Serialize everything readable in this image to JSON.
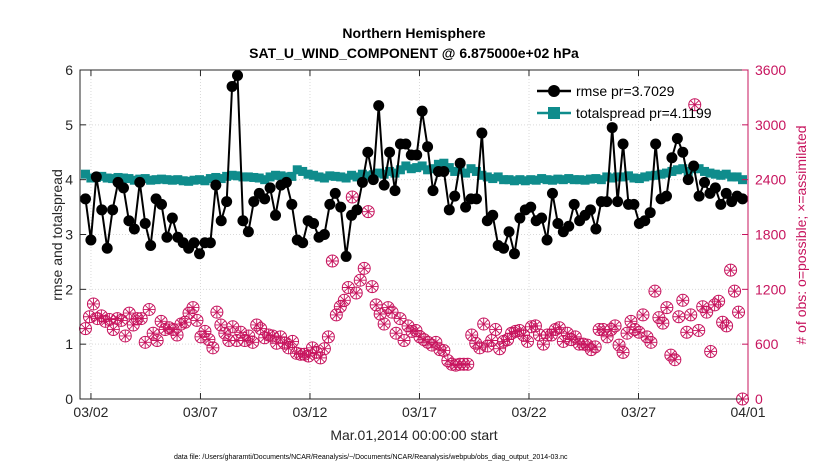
{
  "chart_data": {
    "type": "line",
    "title": "Northern Hemisphere",
    "subtitle": "SAT_U_WIND_COMPONENT @ 6.875000e+02 hPa",
    "xlabel": "Mar.01,2014 00:00:00 start",
    "ylabel": "rmse and totalspread",
    "y2label": "# of obs: o=possible; ×=assimilated",
    "footnote": "data file: /Users/gharamti/Documents/NCAR/Reanalysis/~/Documents/NCAR/Reanalysis/webpub/obs_diag_output_2014-03.nc",
    "xlim": [
      0.5,
      31.0
    ],
    "ylim": [
      0,
      6
    ],
    "y2lim": [
      0,
      3600
    ],
    "x_ticks": [
      1,
      6,
      11,
      16,
      21,
      26,
      31
    ],
    "x_tick_labels": [
      "03/02",
      "03/07",
      "03/12",
      "03/17",
      "03/22",
      "03/27",
      "04/01"
    ],
    "y_ticks": [
      0,
      1,
      2,
      3,
      4,
      5,
      6
    ],
    "y2_ticks": [
      0,
      600,
      1200,
      1800,
      2400,
      3000,
      3600
    ],
    "grid": true,
    "legend_position": "top-right",
    "colors": {
      "rmse": "#000000",
      "totalspread": "#0f8c8c",
      "obs": "#c7145e"
    },
    "series": [
      {
        "name": "rmse pr=3.7029",
        "axis": "left",
        "values": [
          3.65,
          2.9,
          4.05,
          3.45,
          2.75,
          3.45,
          3.95,
          3.85,
          3.25,
          3.1,
          3.95,
          3.2,
          2.8,
          3.65,
          3.55,
          2.95,
          3.3,
          2.95,
          2.85,
          2.75,
          2.85,
          2.65,
          2.85,
          2.85,
          3.9,
          3.25,
          3.6,
          5.7,
          5.9,
          3.25,
          3.05,
          3.6,
          3.75,
          3.65,
          3.85,
          3.35,
          3.9,
          3.95,
          3.55,
          2.9,
          2.85,
          3.25,
          3.2,
          2.95,
          3.0,
          3.55,
          3.75,
          3.5,
          2.6,
          3.35,
          3.45,
          3.95,
          4.5,
          4.0,
          5.35,
          3.9,
          4.5,
          3.8,
          4.65,
          4.65,
          4.45,
          4.45,
          5.25,
          4.6,
          3.8,
          4.15,
          4.15,
          3.45,
          3.7,
          4.3,
          3.5,
          3.65,
          3.65,
          4.85,
          3.25,
          3.35,
          2.8,
          2.75,
          3.05,
          2.65,
          3.3,
          3.45,
          3.5,
          3.25,
          3.3,
          2.9,
          3.75,
          3.2,
          3.05,
          3.15,
          3.55,
          3.25,
          3.35,
          3.45,
          3.1,
          3.6,
          3.6,
          4.95,
          3.6,
          4.65,
          3.55,
          3.55,
          3.2,
          3.25,
          3.4,
          4.65,
          3.65,
          3.7,
          4.4,
          4.75,
          4.5,
          4.0,
          4.25,
          3.7,
          3.95,
          3.75,
          3.85,
          3.55,
          3.75,
          3.6,
          3.7,
          3.65
        ]
      },
      {
        "name": "totalspread pr=4.1199",
        "axis": "left",
        "values": [
          4.1,
          4.03,
          4.04,
          4.06,
          4.03,
          4.02,
          4.04,
          4.03,
          4.02,
          3.99,
          4.01,
          4.02,
          3.99,
          4.0,
          4.01,
          4.0,
          3.99,
          4.0,
          3.98,
          3.97,
          3.99,
          4.0,
          3.98,
          4.02,
          4.04,
          4.02,
          4.06,
          4.08,
          4.07,
          4.05,
          4.05,
          4.04,
          4.03,
          4.0,
          4.05,
          4.08,
          4.07,
          4.05,
          4.06,
          4.18,
          4.15,
          4.1,
          4.08,
          4.05,
          4.03,
          4.07,
          4.06,
          4.05,
          4.03,
          4.08,
          4.05,
          4.1,
          4.07,
          4.09,
          4.12,
          4.1,
          4.15,
          4.12,
          4.18,
          4.25,
          4.2,
          4.22,
          4.25,
          4.18,
          4.2,
          4.28,
          4.3,
          4.22,
          4.15,
          4.18,
          4.12,
          4.2,
          4.15,
          4.08,
          4.05,
          4.02,
          4.05,
          4.0,
          4.0,
          3.98,
          4.0,
          3.98,
          4.0,
          3.99,
          4.02,
          4.0,
          3.99,
          4.01,
          4.0,
          4.02,
          4.0,
          4.0,
          3.99,
          4.01,
          4.02,
          4.0,
          4.05,
          4.03,
          4.05,
          4.05,
          4.07,
          4.03,
          4.02,
          4.05,
          4.07,
          4.08,
          4.1,
          4.12,
          4.15,
          4.18,
          4.2,
          4.15,
          4.2,
          4.2,
          4.15,
          4.12,
          4.1,
          4.08,
          4.1,
          4.05,
          4.05,
          4.0
        ]
      },
      {
        "name": "# obs possible",
        "axis": "right",
        "marker": "o",
        "values": [
          770,
          900,
          1040,
          880,
          910,
          850,
          870,
          760,
          880,
          860,
          690,
          940,
          810,
          880,
          880,
          620,
          980,
          720,
          640,
          850,
          760,
          780,
          760,
          700,
          820,
          840,
          940,
          1000,
          860,
          680,
          740,
          650,
          560,
          950,
          810,
          720,
          640,
          790,
          640,
          730,
          640,
          690,
          620,
          810,
          770,
          670,
          700,
          690,
          610,
          680,
          610,
          560,
          630,
          500,
          490,
          490,
          470,
          560,
          510,
          450,
          550,
          680,
          1510,
          920,
          1010,
          1080,
          1220,
          2210,
          1160,
          1300,
          1430,
          2050,
          1230,
          1030,
          930,
          820,
          1000,
          950,
          720,
          880,
          640,
          800,
          740,
          750,
          680,
          650,
          620,
          590,
          620,
          540,
          530,
          420,
          380,
          370,
          380,
          380,
          380,
          700,
          610,
          560,
          820,
          580,
          640,
          760,
          550,
          630,
          650,
          720,
          740,
          750,
          700,
          630,
          790,
          800,
          700,
          600,
          700,
          700,
          760,
          780,
          630,
          720,
          650,
          680,
          600,
          600,
          590,
          540,
          570,
          760,
          760,
          680,
          760,
          800,
          590,
          510,
          720,
          850,
          760,
          730,
          920,
          680,
          620,
          1180,
          890,
          830,
          1000,
          480,
          430,
          900,
          1080,
          730,
          920,
          3220,
          750,
          1010,
          950,
          520,
          1030,
          1070,
          840,
          800,
          1410,
          1180,
          950,
          0
        ]
      },
      {
        "name": "# obs assimilated",
        "axis": "right",
        "marker": "x",
        "values": [
          770,
          900,
          1040,
          880,
          910,
          850,
          870,
          760,
          880,
          860,
          690,
          940,
          810,
          880,
          880,
          620,
          980,
          720,
          640,
          850,
          760,
          780,
          760,
          700,
          820,
          840,
          940,
          1000,
          860,
          680,
          740,
          650,
          560,
          950,
          810,
          720,
          640,
          790,
          640,
          730,
          640,
          690,
          620,
          810,
          770,
          670,
          700,
          690,
          610,
          680,
          610,
          560,
          630,
          500,
          490,
          490,
          470,
          560,
          510,
          450,
          550,
          680,
          1510,
          920,
          1010,
          1080,
          1220,
          2210,
          1160,
          1300,
          1430,
          2050,
          1230,
          1030,
          930,
          820,
          1000,
          950,
          720,
          880,
          640,
          800,
          740,
          750,
          680,
          650,
          620,
          590,
          620,
          540,
          530,
          420,
          380,
          370,
          380,
          380,
          380,
          700,
          610,
          560,
          820,
          580,
          640,
          760,
          550,
          630,
          650,
          720,
          740,
          750,
          700,
          630,
          790,
          800,
          700,
          600,
          700,
          700,
          760,
          780,
          630,
          720,
          650,
          680,
          600,
          600,
          590,
          540,
          570,
          760,
          760,
          680,
          760,
          800,
          590,
          510,
          720,
          850,
          760,
          730,
          920,
          680,
          620,
          1180,
          890,
          830,
          1000,
          480,
          430,
          900,
          1080,
          730,
          920,
          3220,
          750,
          1010,
          950,
          520,
          1030,
          1070,
          840,
          800,
          1410,
          1180,
          950,
          0
        ]
      }
    ]
  }
}
